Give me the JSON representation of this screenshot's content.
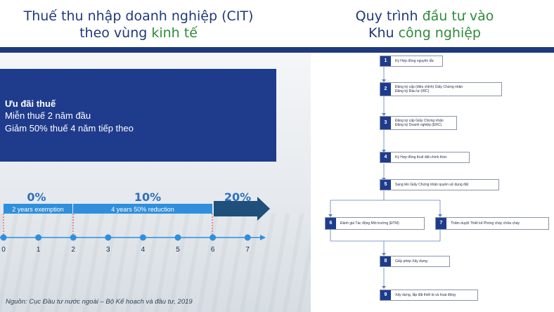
{
  "left_title": {
    "part1": "Thuế thu nhập ",
    "part2": "doanh nghiệp (CIT)",
    "line2_part1": "theo vùng ",
    "line2_part2": "kinh tế"
  },
  "right_title": {
    "line1_part1": "Quy trình ",
    "line1_part2": "đầu tư vào",
    "line2_part1": "Khu ",
    "line2_part2": "công nghiệp"
  },
  "incentive": {
    "title": "Ưu đãi thuế",
    "line1": "Miễn thuế 2 năm đầu",
    "line2": "Giảm 50% thuế 4 năm tiếp theo"
  },
  "timeline": {
    "percentages": [
      "0%",
      "10%",
      "20%"
    ],
    "segments": [
      "2 years exemption",
      "4 years 50% reduction"
    ],
    "ticks": [
      "0",
      "1",
      "2",
      "3",
      "4",
      "5",
      "6",
      "7"
    ],
    "exemption_years": 2,
    "reduction_years": 4
  },
  "source": "Nguồn: Cục Đầu tư nước ngoài – Bộ Kế hoạch và đầu tư, 2019",
  "flow_steps": [
    {
      "num": "1",
      "text": "Ký Hợp đồng nguyên tắc"
    },
    {
      "num": "2",
      "text": "Đăng ký cấp (điều chỉnh) Giấy Chứng nhận\nĐăng ký Đầu tư (IRC)"
    },
    {
      "num": "3",
      "text": "Đăng ký cấp Giấy Chứng nhận\nĐăng ký Doanh nghiệp (ERC)"
    },
    {
      "num": "4",
      "text": "Ký Hợp đồng thuê đất chính thức"
    },
    {
      "num": "5",
      "text": "Sang tên Giấy Chứng nhận quyền sử dụng đất"
    },
    {
      "num": "6",
      "text": "Đánh giá Tác động Môi trường (ĐTM)"
    },
    {
      "num": "7",
      "text": "Thẩm duyệt Thiết kế Phòng cháy chữa cháy"
    },
    {
      "num": "8",
      "text": "Giấy phép Xây dựng"
    },
    {
      "num": "9",
      "text": "Xây dựng, lắp đặt thiết bị và hoạt động"
    }
  ],
  "colors": {
    "navy": "#1e3a78",
    "green": "#2f8a3a",
    "blue_box": "#1f3b8c",
    "timeline_blue": "#2f8fdc"
  }
}
